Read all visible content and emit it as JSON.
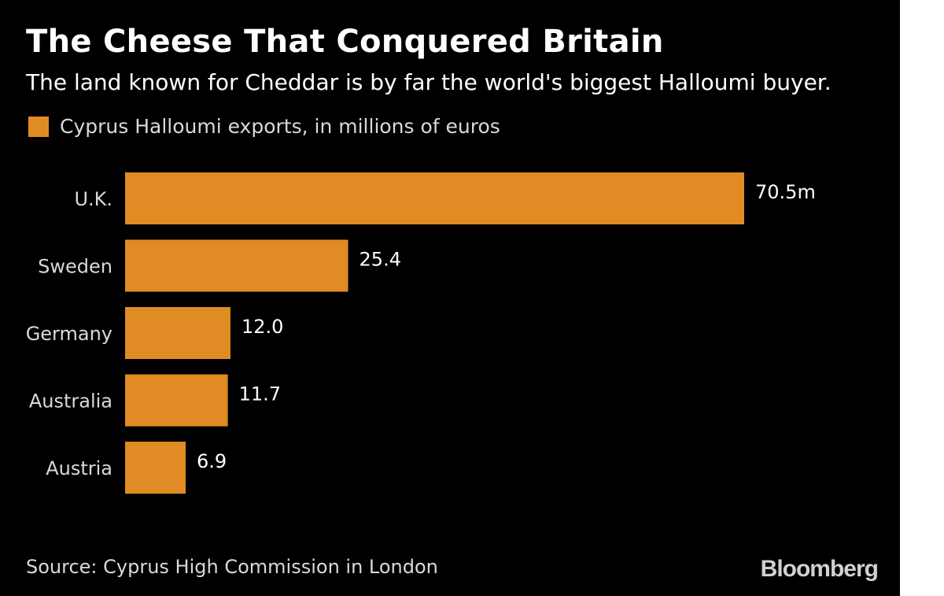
{
  "title": "The Cheese That Conquered Britain",
  "subtitle": "The land known for Cheddar is by far the world's biggest Halloumi buyer.",
  "source": "Source: Cyprus High Commission in London",
  "brand": "Bloomberg",
  "colors": {
    "background": "#000000",
    "bar": "#e08b24",
    "text": "#ffffff",
    "muted_text": "#d9d9d9"
  },
  "chart_data": {
    "type": "bar",
    "orientation": "horizontal",
    "categories": [
      "U.K.",
      "Sweden",
      "Germany",
      "Australia",
      "Austria"
    ],
    "series": [
      {
        "name": "Cyprus Halloumi exports, in millions of euros",
        "values": [
          70.5,
          25.4,
          12.0,
          11.7,
          6.9
        ]
      }
    ],
    "value_labels": [
      "70.5m",
      "25.4",
      "12.0",
      "11.7",
      "6.9"
    ],
    "legend": "top-left",
    "grid": false
  }
}
